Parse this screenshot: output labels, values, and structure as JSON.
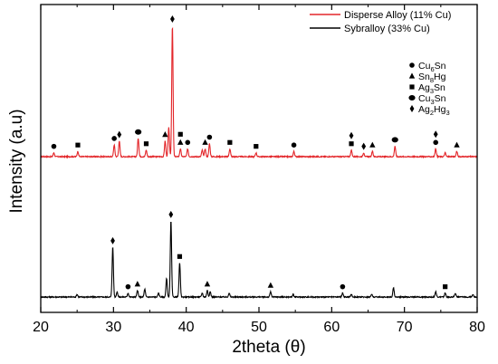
{
  "chart_data": {
    "type": "line",
    "xlabel": "2theta (θ)",
    "ylabel": "Intensity (a.u)",
    "xlim": [
      20,
      80
    ],
    "x_ticks": [
      20,
      30,
      40,
      50,
      60,
      70,
      80
    ],
    "y_ticks_shown": false,
    "grid": false,
    "legend": {
      "placement": "top-right",
      "entries": [
        {
          "name": "Disperse Alloy (11% Cu)",
          "color": "#e3262a"
        },
        {
          "name": "Sybralloy (33% Cu)",
          "color": "#000000"
        }
      ]
    },
    "phase_legend": [
      {
        "symbol": "circle",
        "label": "Cu",
        "sub1": "6",
        "mid": "Sn",
        "sub2": ""
      },
      {
        "symbol": "triangle",
        "label": "Sn",
        "sub1": "8",
        "mid": "Hg",
        "sub2": ""
      },
      {
        "symbol": "square",
        "label": "Ag",
        "sub1": "3",
        "mid": "Sn",
        "sub2": ""
      },
      {
        "symbol": "hexagon",
        "label": "Cu",
        "sub1": "3",
        "mid": "Sn",
        "sub2": ""
      },
      {
        "symbol": "diamond",
        "label": "Ag",
        "sub1": "2",
        "mid": "Hg",
        "sub2": "3"
      }
    ],
    "series": [
      {
        "name": "Disperse Alloy (11% Cu)",
        "color": "#e3262a",
        "baseline": 0.5,
        "peaks": [
          [
            21.8,
            0.03
          ],
          [
            25.1,
            0.04
          ],
          [
            30.1,
            0.09
          ],
          [
            30.8,
            0.12
          ],
          [
            33.4,
            0.14
          ],
          [
            34.5,
            0.05
          ],
          [
            37.1,
            0.12
          ],
          [
            37.6,
            0.22
          ],
          [
            38.1,
            1.0
          ],
          [
            39.2,
            0.06
          ],
          [
            40.2,
            0.06
          ],
          [
            42.2,
            0.05
          ],
          [
            42.6,
            0.06
          ],
          [
            43.2,
            0.1
          ],
          [
            46.0,
            0.06
          ],
          [
            49.6,
            0.03
          ],
          [
            54.8,
            0.04
          ],
          [
            62.7,
            0.05
          ],
          [
            64.4,
            0.03
          ],
          [
            65.6,
            0.04
          ],
          [
            68.7,
            0.08
          ],
          [
            74.3,
            0.06
          ],
          [
            75.6,
            0.03
          ],
          [
            77.2,
            0.04
          ]
        ],
        "markers": [
          {
            "x": 21.8,
            "symbol": "circle"
          },
          {
            "x": 25.1,
            "symbol": "square"
          },
          {
            "x": 30.1,
            "symbol": "circle"
          },
          {
            "x": 30.8,
            "symbol": "diamond"
          },
          {
            "x": 33.4,
            "symbol": "hexagon"
          },
          {
            "x": 34.5,
            "symbol": "square"
          },
          {
            "x": 37.1,
            "symbol": "triangle"
          },
          {
            "x": 38.1,
            "symbol": "diamond"
          },
          {
            "x": 39.2,
            "symbol": "triangle"
          },
          {
            "x": 40.2,
            "symbol": "circle"
          },
          {
            "x": 39.2,
            "symbol": "square"
          },
          {
            "x": 42.6,
            "symbol": "triangle"
          },
          {
            "x": 43.2,
            "symbol": "circle"
          },
          {
            "x": 46.0,
            "symbol": "square"
          },
          {
            "x": 49.6,
            "symbol": "square"
          },
          {
            "x": 54.8,
            "symbol": "circle"
          },
          {
            "x": 62.7,
            "symbol": "square"
          },
          {
            "x": 62.7,
            "symbol": "diamond"
          },
          {
            "x": 64.4,
            "symbol": "diamond"
          },
          {
            "x": 65.6,
            "symbol": "triangle"
          },
          {
            "x": 68.7,
            "symbol": "hexagon"
          },
          {
            "x": 74.3,
            "symbol": "circle"
          },
          {
            "x": 74.3,
            "symbol": "diamond"
          },
          {
            "x": 77.2,
            "symbol": "triangle"
          }
        ]
      },
      {
        "name": "Sybralloy (33% Cu)",
        "color": "#000000",
        "baseline": 0.0,
        "peaks": [
          [
            25.0,
            0.02
          ],
          [
            29.9,
            0.38
          ],
          [
            30.5,
            0.04
          ],
          [
            32.0,
            0.03
          ],
          [
            33.3,
            0.05
          ],
          [
            34.3,
            0.06
          ],
          [
            36.2,
            0.03
          ],
          [
            37.3,
            0.14
          ],
          [
            37.9,
            0.58
          ],
          [
            39.1,
            0.26
          ],
          [
            42.2,
            0.03
          ],
          [
            42.9,
            0.05
          ],
          [
            43.3,
            0.04
          ],
          [
            45.9,
            0.03
          ],
          [
            51.6,
            0.04
          ],
          [
            54.7,
            0.02
          ],
          [
            61.5,
            0.03
          ],
          [
            62.7,
            0.02
          ],
          [
            65.5,
            0.02
          ],
          [
            68.5,
            0.07
          ],
          [
            74.3,
            0.04
          ],
          [
            75.6,
            0.03
          ],
          [
            77.0,
            0.03
          ],
          [
            79.4,
            0.02
          ]
        ],
        "markers": [
          {
            "x": 29.9,
            "symbol": "diamond"
          },
          {
            "x": 32.0,
            "symbol": "circle"
          },
          {
            "x": 33.3,
            "symbol": "triangle"
          },
          {
            "x": 37.9,
            "symbol": "diamond"
          },
          {
            "x": 39.1,
            "symbol": "square"
          },
          {
            "x": 42.9,
            "symbol": "triangle"
          },
          {
            "x": 51.6,
            "symbol": "triangle"
          },
          {
            "x": 61.5,
            "symbol": "circle"
          },
          {
            "x": 75.6,
            "symbol": "square"
          }
        ]
      }
    ]
  }
}
